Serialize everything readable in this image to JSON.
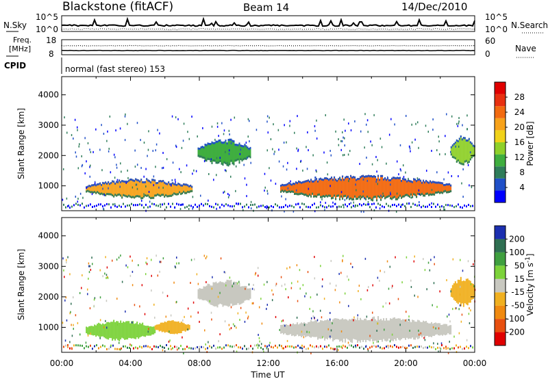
{
  "header": {
    "station": "Blackstone (fitACF)",
    "beam": "Beam 14",
    "date": "14/Dec/2010"
  },
  "top_panels": {
    "nsky_label": "N.Sky",
    "nsearch_label": "N.Search",
    "nsky_ticks": [
      "10^5",
      "10^0"
    ],
    "nsearch_ticks": [
      "10^5",
      "10^0"
    ],
    "freq_label_1": "Freq.",
    "freq_label_2": "[MHz]",
    "freq_ticks": [
      "18",
      "8"
    ],
    "nave_label": "Nave",
    "nave_ticks": [
      "60",
      "0"
    ],
    "cpid_label": "CPID",
    "cpid_text": "normal (fast stereo) 153"
  },
  "chart_data": [
    {
      "type": "heatmap",
      "name": "power",
      "ylabel": "Slant Range [km]",
      "ylim": [
        180,
        4600
      ],
      "yticks": [
        1000,
        2000,
        3000,
        4000
      ],
      "xlim": [
        "00:00",
        "24:00"
      ],
      "colorbar": {
        "label": "Power [dB]",
        "ticks": [
          "28",
          "24",
          "20",
          "16",
          "12",
          "8",
          "4"
        ],
        "colors": [
          "#0000ff",
          "#2050c8",
          "#2f7d5a",
          "#3fae3f",
          "#8fd02a",
          "#f0d21a",
          "#f7a21a",
          "#f26a10",
          "#e83010",
          "#e00000"
        ]
      },
      "regions": [
        {
          "start_hour": 1.4,
          "end_hour": 7.6,
          "range_km": [
            600,
            1200
          ],
          "power_db": 20
        },
        {
          "start_hour": 7.9,
          "end_hour": 11.0,
          "range_km": [
            1700,
            2500
          ],
          "power_db": 12
        },
        {
          "start_hour": 12.7,
          "end_hour": 22.6,
          "range_km": [
            550,
            1300
          ],
          "power_db": 26
        },
        {
          "start_hour": 22.6,
          "end_hour": 24.0,
          "range_km": [
            1700,
            2600
          ],
          "power_db": 14
        }
      ]
    },
    {
      "type": "heatmap",
      "name": "velocity",
      "ylabel": "Slant Range [km]",
      "ylim": [
        180,
        4600
      ],
      "yticks": [
        1000,
        2000,
        3000,
        4000
      ],
      "xticks": [
        "00:00",
        "04:00",
        "08:00",
        "12:00",
        "16:00",
        "20:00",
        "00:00"
      ],
      "xlabel": "Time UT",
      "colorbar": {
        "label": "Velocity [m s^-1]",
        "ticks": [
          "200",
          "100",
          "50",
          "15",
          "-15",
          "-50",
          "-100",
          "-200"
        ],
        "colors": [
          "#1c2fb0",
          "#2f6f52",
          "#3f9f3f",
          "#7cd23a",
          "#c8c8c0",
          "#f0b020",
          "#f08a10",
          "#e85010",
          "#e00000"
        ]
      },
      "regions": [
        {
          "start_hour": 1.4,
          "end_hour": 5.4,
          "range_km": [
            600,
            1200
          ],
          "velocity_mps": 30
        },
        {
          "start_hour": 5.4,
          "end_hour": 7.4,
          "range_km": [
            800,
            1200
          ],
          "velocity_mps": -40
        },
        {
          "start_hour": 7.9,
          "end_hour": 11.0,
          "range_km": [
            1700,
            2500
          ],
          "velocity_mps": 0
        },
        {
          "start_hour": 12.7,
          "end_hour": 22.6,
          "range_km": [
            550,
            1300
          ],
          "velocity_mps": 0
        },
        {
          "start_hour": 22.6,
          "end_hour": 24.0,
          "range_km": [
            1700,
            2600
          ],
          "velocity_mps": -30
        }
      ]
    }
  ]
}
